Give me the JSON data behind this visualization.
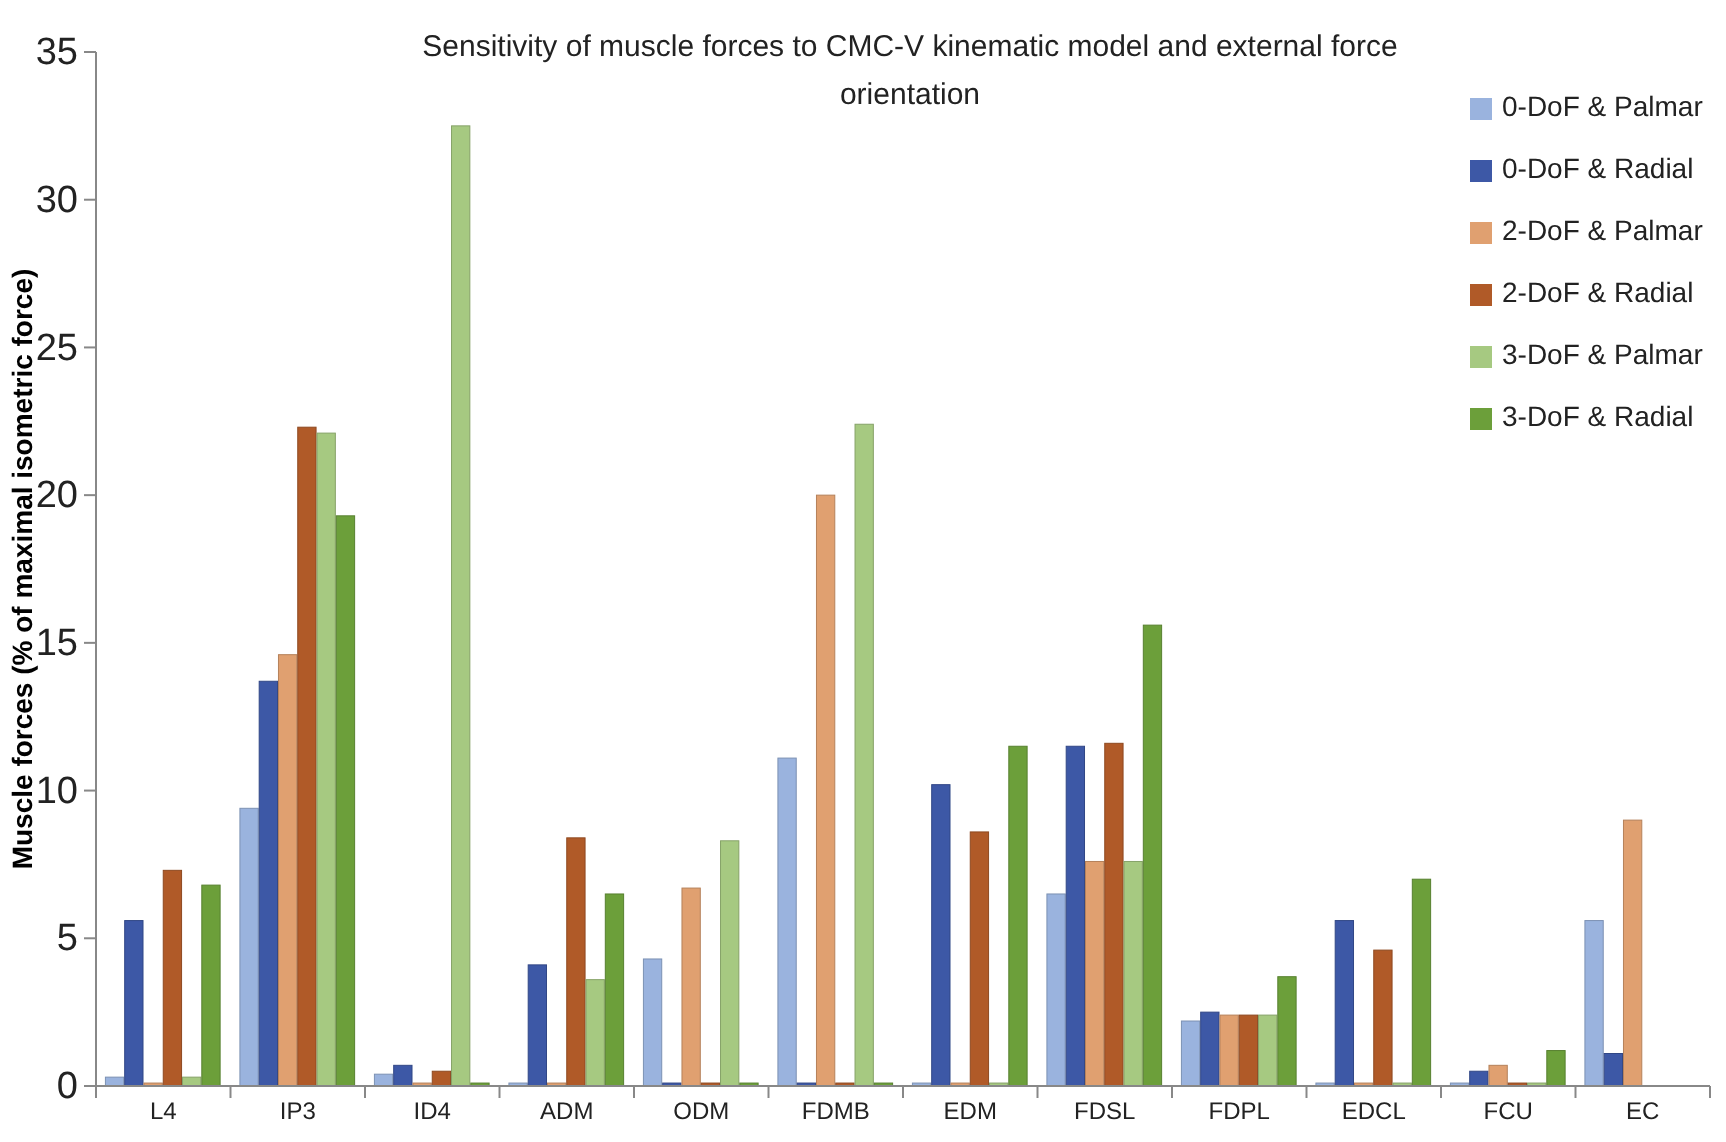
{
  "chart_data": {
    "type": "bar",
    "title": "Sensitivity of muscle forces to CMC-V kinematic model and external force orientation",
    "ylabel": "Muscle forces (% of maximal isometric force)",
    "categories": [
      "L4",
      "IP3",
      "ID4",
      "ADM",
      "ODM",
      "FDMB",
      "EDM",
      "FDSL",
      "FDPL",
      "EDCL",
      "FCU",
      "EC"
    ],
    "series": [
      {
        "name": "0-DoF & Palmar",
        "color": "#9ab3de",
        "values": [
          0.3,
          9.4,
          0.4,
          0.1,
          4.3,
          11.1,
          0.1,
          6.5,
          2.2,
          0.1,
          0.1,
          5.6
        ]
      },
      {
        "name": "0-DoF & Radial",
        "color": "#3d58a6",
        "values": [
          5.6,
          13.7,
          0.7,
          4.1,
          0.1,
          0.1,
          10.2,
          11.5,
          2.5,
          5.6,
          0.5,
          1.1
        ]
      },
      {
        "name": "2-DoF & Palmar",
        "color": "#e0a070",
        "values": [
          0.1,
          14.6,
          0.1,
          0.1,
          6.7,
          20.0,
          0.1,
          7.6,
          2.4,
          0.1,
          0.7,
          9.0
        ]
      },
      {
        "name": "2-DoF & Radial",
        "color": "#b05a28",
        "values": [
          7.3,
          22.3,
          0.5,
          8.4,
          0.1,
          0.1,
          8.6,
          11.6,
          2.4,
          4.6,
          0.1,
          null
        ]
      },
      {
        "name": "3-DoF & Palmar",
        "color": "#a6c981",
        "values": [
          0.3,
          22.1,
          32.5,
          3.6,
          8.3,
          22.4,
          0.1,
          7.6,
          2.4,
          0.1,
          0.1,
          null
        ]
      },
      {
        "name": "3-DoF & Radial",
        "color": "#6c9f3a",
        "values": [
          6.8,
          19.3,
          0.1,
          6.5,
          0.1,
          0.1,
          11.5,
          15.6,
          3.7,
          7.0,
          1.2,
          null
        ]
      }
    ],
    "ylim": [
      0,
      35
    ],
    "yticks": [
      0,
      5,
      10,
      15,
      20,
      25,
      30,
      35
    ],
    "grid": false,
    "legend": "top right"
  }
}
